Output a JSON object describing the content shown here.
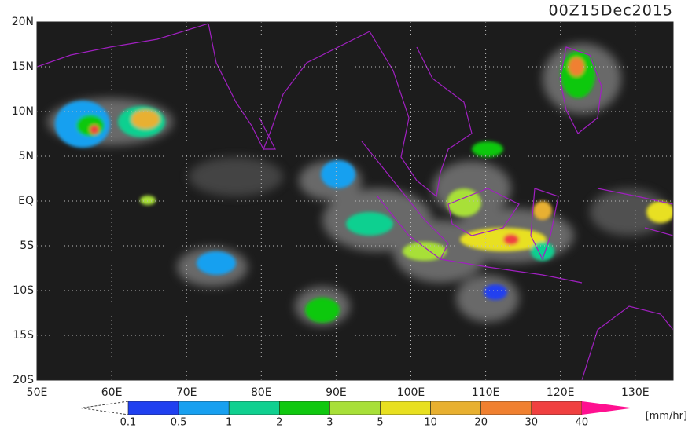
{
  "title": "00Z15Dec2015",
  "lat_labels": [
    "20N",
    "15N",
    "10N",
    "5N",
    "EQ",
    "5S",
    "10S",
    "15S",
    "20S"
  ],
  "lon_labels": [
    "50E",
    "60E",
    "70E",
    "80E",
    "90E",
    "100E",
    "110E",
    "120E",
    "130E"
  ],
  "colorbar": {
    "labels": [
      "0.1",
      "0.5",
      "1",
      "2",
      "3",
      "5",
      "10",
      "20",
      "30",
      "40"
    ],
    "colors": [
      "#2040f0",
      "#18a0f0",
      "#10d090",
      "#10c810",
      "#a8e038",
      "#e8e020",
      "#e8b030",
      "#f08030",
      "#f04040"
    ],
    "over_color": "#ff1090",
    "unit": "[mm/hr]"
  }
}
